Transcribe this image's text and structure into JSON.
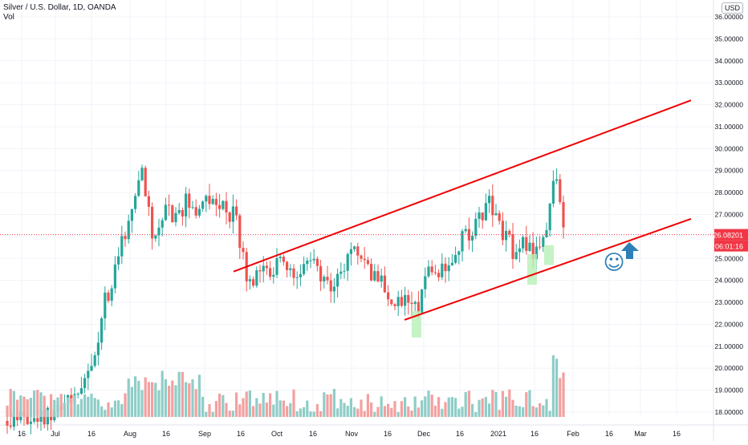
{
  "legend": {
    "title": "Silver / U.S. Dollar, 1D, OANDA",
    "volume_label": "Vol"
  },
  "price_axis": {
    "currency": "USD",
    "min": 18,
    "max": 36,
    "ticks": [
      "36.00000",
      "35.00000",
      "34.00000",
      "33.00000",
      "32.00000",
      "31.00000",
      "30.00000",
      "29.00000",
      "28.00000",
      "27.00000",
      "26.00000",
      "25.00000",
      "24.00000",
      "23.00000",
      "22.00000",
      "21.00000",
      "20.00000",
      "19.00000",
      "18.00000"
    ]
  },
  "last_price": {
    "value": 26.08201,
    "label": "26.08201",
    "countdown": "06:01:16",
    "color": "#f23645"
  },
  "time_axis": {
    "labels": [
      {
        "text": "16",
        "day": -14
      },
      {
        "text": "Jul",
        "day": 0
      },
      {
        "text": "16",
        "day": 15
      },
      {
        "text": "Aug",
        "day": 31
      },
      {
        "text": "16",
        "day": 46
      },
      {
        "text": "Sep",
        "day": 62
      },
      {
        "text": "16",
        "day": 77
      },
      {
        "text": "Oct",
        "day": 92
      },
      {
        "text": "16",
        "day": 107
      },
      {
        "text": "Nov",
        "day": 123
      },
      {
        "text": "16",
        "day": 138
      },
      {
        "text": "Dec",
        "day": 153
      },
      {
        "text": "16",
        "day": 168
      },
      {
        "text": "2021",
        "day": 184
      },
      {
        "text": "16",
        "day": 199
      },
      {
        "text": "Feb",
        "day": 215
      },
      {
        "text": "16",
        "day": 230
      },
      {
        "text": "Mar",
        "day": 243
      },
      {
        "text": "16",
        "day": 258
      }
    ]
  },
  "colors": {
    "up": "#26a69a",
    "down": "#ef5350",
    "vol_up": "#8fcdc7",
    "vol_down": "#f4a0a0",
    "trendline": "#f00000",
    "highlight": "#b7f0b7",
    "arrow": "#2c7fb8",
    "grid": "#f0f3fa"
  },
  "chart_data": {
    "type": "candlestick",
    "symbol": "Silver / U.S. Dollar",
    "interval": "1D",
    "key_points": [
      {
        "date": "Jul 1",
        "close": 18.0
      },
      {
        "date": "Aug 7",
        "high": 29.8,
        "close": 29.0
      },
      {
        "date": "Aug 11",
        "low": 25.0
      },
      {
        "date": "Sep 24",
        "low": 21.7,
        "close": 22.9
      },
      {
        "date": "Nov 30",
        "low": 22.2,
        "close": 22.6
      },
      {
        "date": "Jan 6",
        "high": 27.9,
        "close": 27.6
      },
      {
        "date": "Feb 1",
        "high": 30.1,
        "close": 29.0
      },
      {
        "date": "Feb 5",
        "close": 26.08201
      }
    ],
    "trendlines": [
      {
        "name": "upper",
        "from": {
          "day": 74,
          "price": 24.4
        },
        "to": {
          "day": 264,
          "price": 32.2
        }
      },
      {
        "name": "lower",
        "from": {
          "day": 145,
          "price": 22.2
        },
        "to": {
          "day": 264,
          "price": 26.8
        }
      }
    ],
    "ylim": [
      18,
      36
    ]
  },
  "annotations": {
    "smiley": "☺",
    "arrow": "up-arrow"
  }
}
